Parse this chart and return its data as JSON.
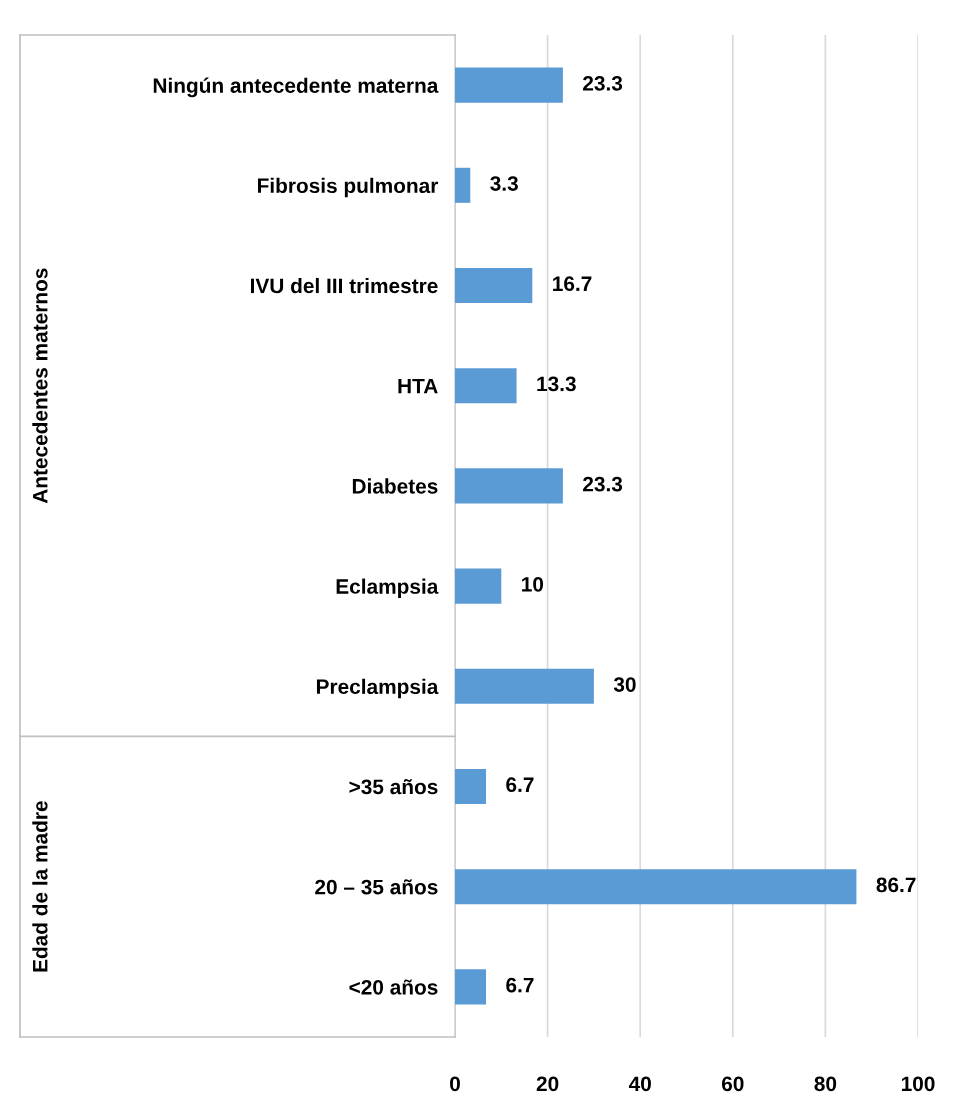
{
  "chart_data": {
    "type": "bar",
    "orientation": "horizontal",
    "categories": [
      "Ningún antecedente materna",
      "Fibrosis pulmonar",
      "IVU del III trimestre",
      "HTA",
      "Diabetes",
      "Eclampsia",
      "Preclampsia",
      ">35 años",
      "20 – 35 años",
      "<20 años"
    ],
    "values": [
      23.3,
      3.3,
      16.7,
      13.3,
      23.3,
      10,
      30,
      6.7,
      86.7,
      6.7
    ],
    "color": "#5b9bd5",
    "xlim": [
      0,
      100
    ],
    "xticks": [
      0,
      20,
      40,
      60,
      80,
      100
    ],
    "grid": "x",
    "data_labels": true,
    "annotations": [
      "Antecedentes maternos",
      "Edad de la madre"
    ]
  }
}
